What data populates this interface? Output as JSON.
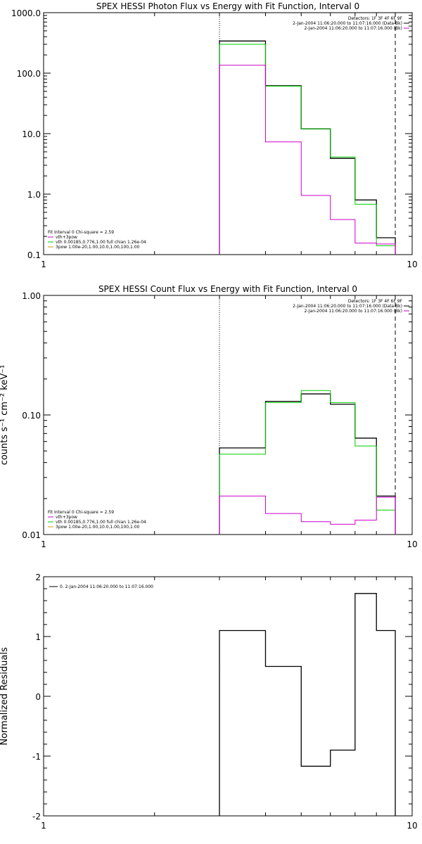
{
  "chart_data": [
    {
      "type": "line",
      "title": "SPEX HESSI Photon Flux vs Energy with Fit Function, Interval 0",
      "ylabel": "",
      "xlabel": "",
      "xscale": "log",
      "yscale": "log",
      "xlim": [
        1,
        10
      ],
      "ylim": [
        0.1,
        1000
      ],
      "x_ticklabels": [
        "1",
        "10"
      ],
      "y_ticks": [
        0.1,
        1,
        10,
        100,
        1000
      ],
      "y_ticklabels": [
        "0.1",
        "1.0",
        "10.0",
        "100.0",
        "1000.0"
      ],
      "grid": false,
      "top_right_legend": [
        "Detectors: 1F 3F 4F 6F 9F",
        "2-Jan-2004 11:06:20.000 to 11:07:16.000 (Data-Bk)",
        "2-Jan-2004 11:06:20.000 to 11:07:16.000 (Bk)"
      ],
      "bottom_left_legend": [
        "Fit Interval  0    Chi-square = 2.59",
        "vth+3pow",
        "vth 0.00185,0.776,1.00  full chian 1.26e-04",
        "3pow 1.00e-20,1.00,10.0,1.00,100,1.00"
      ],
      "vlines": [
        {
          "x": 3.0,
          "style": "dotted"
        },
        {
          "x": 9.0,
          "style": "dashed"
        }
      ],
      "bin_edges": [
        3.0,
        4.0,
        5.0,
        6.0,
        7.0,
        8.0,
        9.0
      ],
      "series": [
        {
          "color": "#000000",
          "values": [
            340,
            62,
            12,
            3.9,
            0.8,
            0.19
          ]
        },
        {
          "color": "#00cc00",
          "values": [
            300,
            61,
            12,
            4.1,
            0.68,
            0.14
          ]
        },
        {
          "color": "#cc00cc",
          "values": [
            135,
            7.3,
            0.95,
            0.38,
            0.155,
            0.15
          ]
        }
      ]
    },
    {
      "type": "line",
      "title": "SPEX HESSI Count Flux vs Energy with Fit Function, Interval 0",
      "ylabel": "counts s⁻¹ cm⁻² keV⁻¹",
      "xlabel": "",
      "xscale": "log",
      "yscale": "log",
      "xlim": [
        1,
        10
      ],
      "ylim": [
        0.01,
        1
      ],
      "x_ticklabels": [
        "1",
        "10"
      ],
      "y_ticks": [
        0.01,
        0.1,
        1
      ],
      "y_ticklabels": [
        "0.01",
        "0.10",
        "1.00"
      ],
      "grid": false,
      "top_right_legend": [
        "Detectors: 1F 3F 4F 6F 9F",
        "2-Jan-2004 11:06:20.000 to 11:07:16.000 (Data-Bk)",
        "2-Jan-2004 11:06:20.000 to 11:07:16.000 (Bk)"
      ],
      "bottom_left_legend": [
        "Fit Interval  0    Chi-square = 2.59",
        "vth+3pow",
        "vth 0.00185,0.776,1.00  full chian 1.26e-04",
        "3pow 1.00e-20,1.00,10.0,1.00,100,1.00"
      ],
      "vlines": [
        {
          "x": 3.0,
          "style": "dotted"
        },
        {
          "x": 9.0,
          "style": "dashed"
        }
      ],
      "bin_edges": [
        3.0,
        4.0,
        5.0,
        6.0,
        7.0,
        8.0,
        9.0
      ],
      "series": [
        {
          "color": "#000000",
          "values": [
            0.053,
            0.13,
            0.15,
            0.123,
            0.064,
            0.021
          ]
        },
        {
          "color": "#00cc00",
          "values": [
            0.047,
            0.127,
            0.16,
            0.127,
            0.055,
            0.016
          ]
        },
        {
          "color": "#cc00cc",
          "values": [
            0.021,
            0.015,
            0.0128,
            0.0122,
            0.0132,
            0.0205
          ]
        }
      ]
    },
    {
      "type": "line",
      "title": "",
      "ylabel": "Normalized Residuals",
      "xlabel": "",
      "xscale": "log",
      "yscale": "linear",
      "xlim": [
        1,
        10
      ],
      "ylim": [
        -2,
        2
      ],
      "x_ticklabels": [
        "1",
        "10"
      ],
      "y_ticks": [
        -2,
        -1,
        0,
        1,
        2
      ],
      "y_ticklabels": [
        "-2",
        "-1",
        "0",
        "1",
        "2"
      ],
      "grid": false,
      "legend": "0.  2-Jan-2004 11:06:20.000 to 11:07:16.000",
      "bin_edges": [
        3.0,
        4.0,
        5.0,
        6.0,
        7.0,
        8.0,
        9.0
      ],
      "series": [
        {
          "color": "#000000",
          "values": [
            1.1,
            0.5,
            -1.17,
            -0.9,
            1.72,
            1.1
          ]
        }
      ]
    }
  ]
}
